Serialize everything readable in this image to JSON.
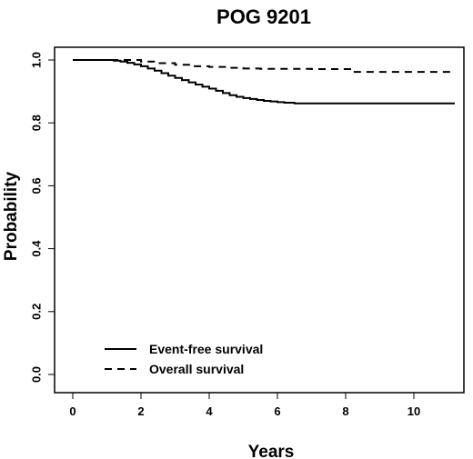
{
  "chart_data": {
    "type": "line",
    "title": "POG 9201",
    "xlabel": "Years",
    "ylabel": "Probability",
    "xlim": [
      0,
      11.5
    ],
    "ylim": [
      0,
      1.0
    ],
    "xticks": [
      0,
      2,
      4,
      6,
      8,
      10
    ],
    "xtick_labels": [
      "0",
      "2",
      "4",
      "6",
      "8",
      "10"
    ],
    "yticks": [
      0.0,
      0.2,
      0.4,
      0.6,
      0.8,
      1.0
    ],
    "ytick_labels": [
      "0.0",
      "0.2",
      "0.4",
      "0.6",
      "0.8",
      "1.0"
    ],
    "grid": false,
    "legend_position": "bottom-left",
    "series": [
      {
        "name": "Event-free survival",
        "line_style": "solid",
        "step": true,
        "x": [
          0,
          1.0,
          1.2,
          1.4,
          1.6,
          1.8,
          2.0,
          2.2,
          2.4,
          2.6,
          2.8,
          3.0,
          3.2,
          3.4,
          3.6,
          3.8,
          4.0,
          4.2,
          4.4,
          4.6,
          4.8,
          5.0,
          5.2,
          5.4,
          5.6,
          5.8,
          6.0,
          6.2,
          6.5,
          11.2
        ],
        "y": [
          1.0,
          1.0,
          0.998,
          0.995,
          0.991,
          0.986,
          0.98,
          0.973,
          0.966,
          0.958,
          0.95,
          0.943,
          0.936,
          0.929,
          0.922,
          0.915,
          0.909,
          0.902,
          0.895,
          0.888,
          0.883,
          0.879,
          0.876,
          0.873,
          0.87,
          0.868,
          0.866,
          0.864,
          0.862,
          0.862
        ]
      },
      {
        "name": "Overall survival",
        "line_style": "dashed",
        "step": true,
        "x": [
          0,
          1.4,
          2.0,
          2.5,
          3.0,
          3.5,
          4.0,
          4.5,
          5.0,
          5.5,
          6.0,
          7.0,
          8.2,
          11.2
        ],
        "y": [
          1.0,
          1.0,
          0.995,
          0.99,
          0.985,
          0.98,
          0.978,
          0.975,
          0.973,
          0.972,
          0.972,
          0.971,
          0.962,
          0.962
        ]
      }
    ]
  }
}
